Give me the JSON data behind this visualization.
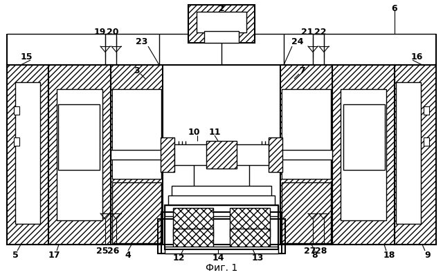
{
  "title": "Фиг. 1",
  "bg_color": "#ffffff",
  "fig_width": 6.4,
  "fig_height": 4.02,
  "dpi": 100
}
